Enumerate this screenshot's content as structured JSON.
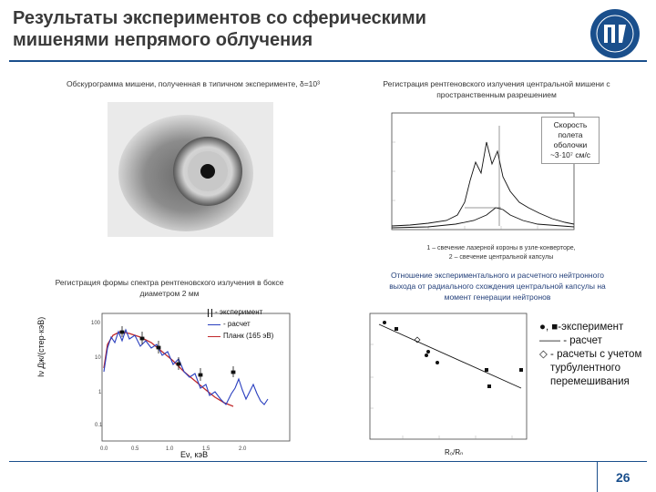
{
  "title": {
    "line1": "Результаты экспериментов со сферическими",
    "line2": "мишенями непрямого облучения"
  },
  "page_number": "26",
  "captions": {
    "top_left": "Обскурограмма мишени, полученная в типичном эксперименте, δ=10³",
    "top_right_1": "Регистрация рентгеновского излучения центральной мишени с",
    "top_right_2": "пространственным разрешением",
    "mid_right_1": "1 – свечение лазерной короны в узле-конверторе,",
    "mid_right_2": "2 – свечение центральной капсулы",
    "bottom_left_1": "Регистрация формы спектра рентгеновского излучения в боксе",
    "bottom_left_2": "диаметром 2 мм",
    "bottom_right_1": "Отношение экспериментального и расчетного нейтронного",
    "bottom_right_2": "выхода от радиального схождения центральной капсулы на",
    "bottom_right_3": "момент генерации нейтронов"
  },
  "velocity_box": {
    "line1": "Скорость",
    "line2": "полета",
    "line3": "оболочки",
    "line4": "~3·10⁷ см/с"
  },
  "spectrum_legend": {
    "experiment": "- эксперимент",
    "calc": "- расчет",
    "planck": "Планк (165 эВ)"
  },
  "spectrum_axes": {
    "ylabel": "Iν Дж/(стер·кэВ)",
    "xlabel": "Eν, кэВ"
  },
  "neutron_legend": {
    "line1": "●, ■-эксперимент",
    "line2": "—— - расчет",
    "line3": "◇ - расчеты с учетом",
    "line4": "турбулентного",
    "line5": "перемешивания"
  },
  "neutron_axes": {
    "xlabel": "R₀/Rₙ"
  },
  "colors": {
    "accent": "#1a4f8c",
    "spectrum_calc": "#2a3fbf",
    "spectrum_planck": "#c0282a"
  }
}
